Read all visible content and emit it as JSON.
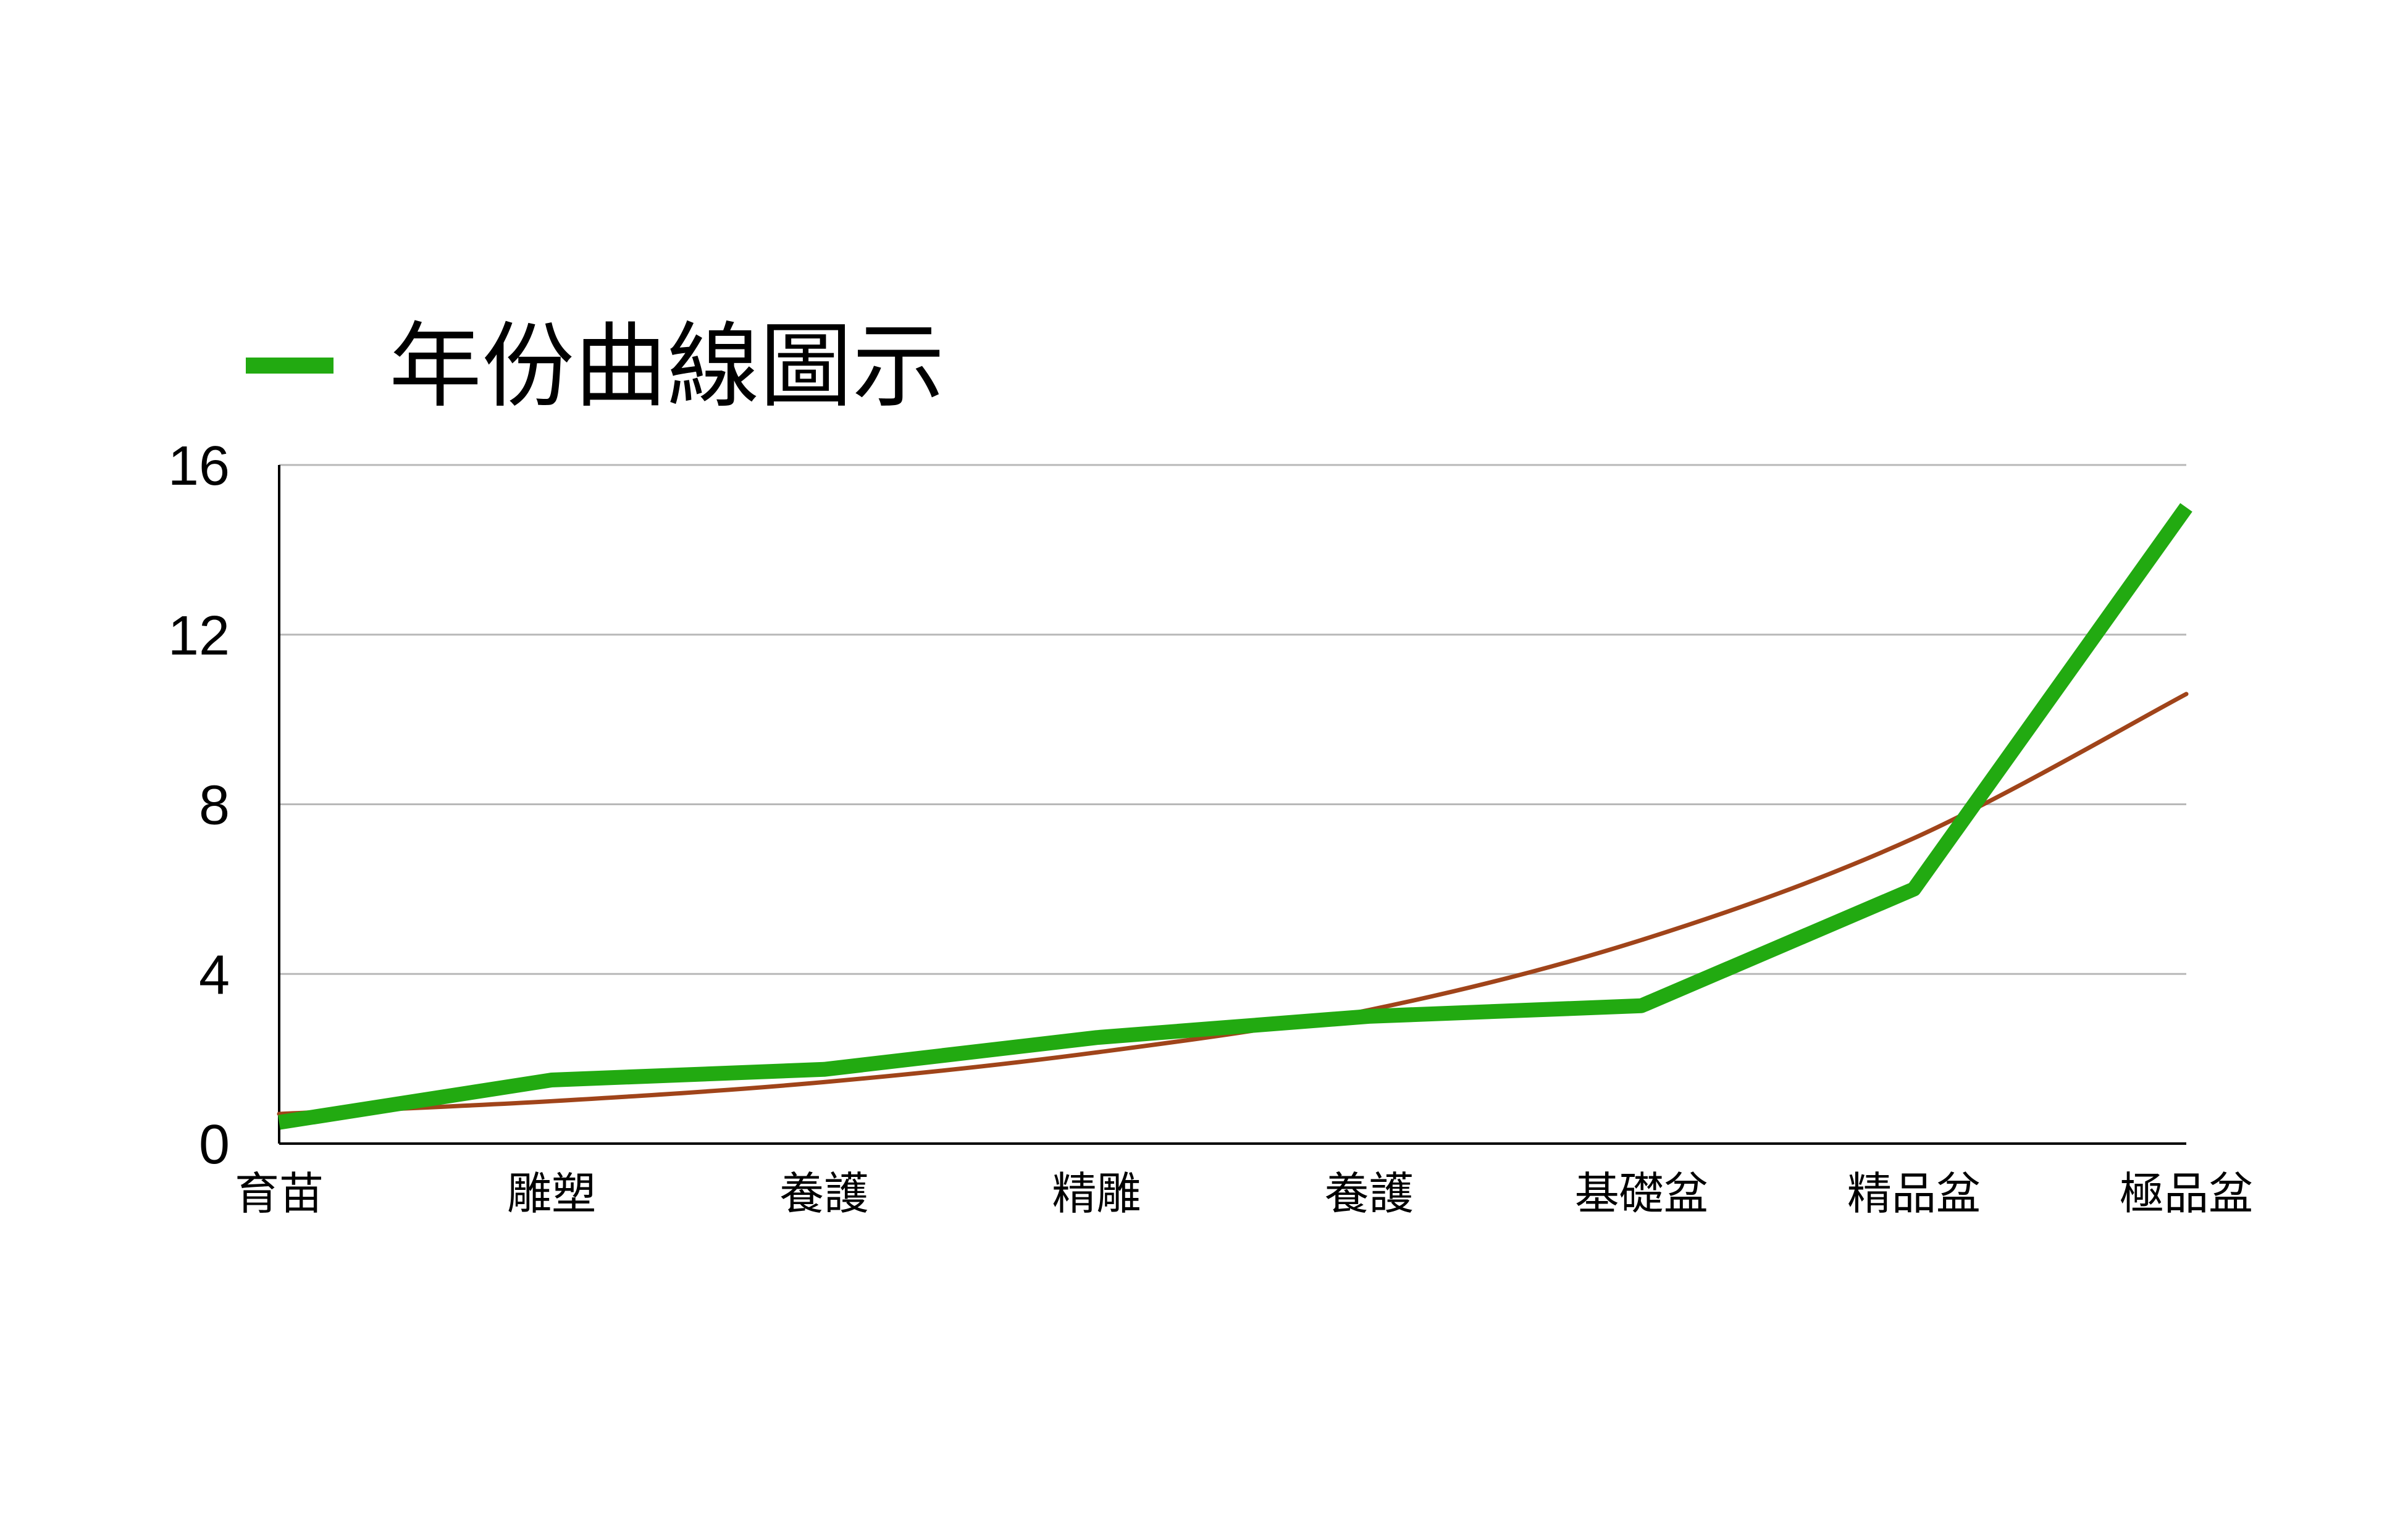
{
  "chart_data": {
    "type": "line",
    "categories": [
      "育苗",
      "雕塑",
      "養護",
      "精雕",
      "養護",
      "基礎盆",
      "精品盆",
      "極品盆"
    ],
    "series": [
      {
        "name": "年份曲線圖示",
        "values": [
          0.5,
          1.5,
          1.75,
          2.5,
          3.0,
          3.25,
          6.0,
          15.0
        ],
        "color": "#22aa11"
      }
    ],
    "trendline": {
      "type": "exponential",
      "values": [
        0.7,
        1.0,
        1.45,
        2.15,
        3.15,
        4.8,
        7.2,
        10.6
      ],
      "color": "#a0441a"
    },
    "ylim": [
      0,
      16
    ],
    "yticks": [
      0,
      4,
      8,
      12,
      16
    ],
    "grid": true,
    "legend_position": "top-left"
  }
}
